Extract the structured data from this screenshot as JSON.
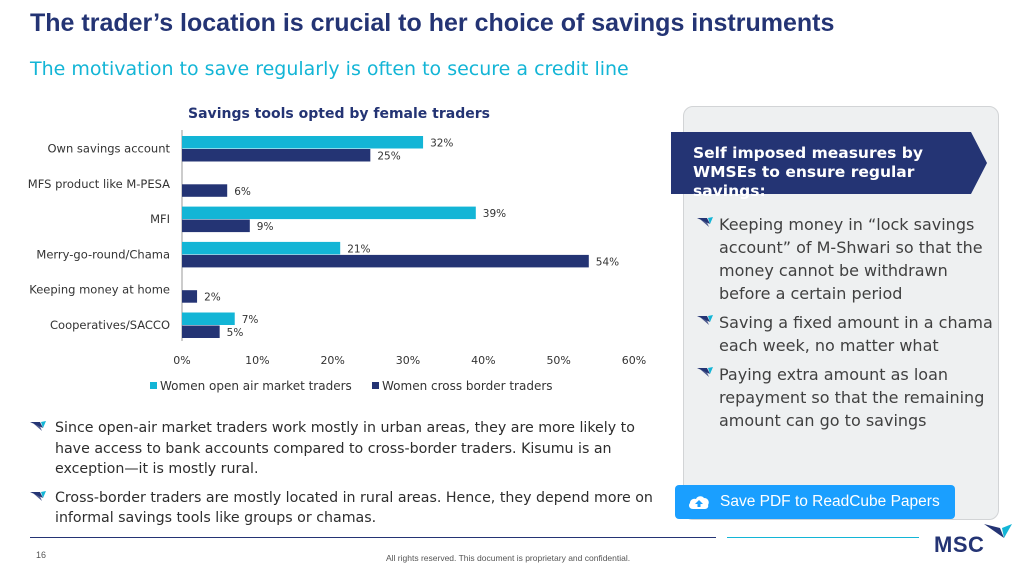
{
  "page": {
    "title": "The trader’s location is crucial to her choice of savings instruments",
    "subtitle": "The motivation to save regularly is often to secure a credit line",
    "page_number": "16",
    "copyright": "All rights reserved. This document is proprietary and confidential.",
    "logo": "MSC"
  },
  "colors": {
    "navy": "#243474",
    "cyan": "#13b5d6",
    "button_blue": "#1a9fff"
  },
  "chart_data": {
    "type": "bar",
    "orientation": "horizontal",
    "title": "Savings tools opted by female traders",
    "categories": [
      "Own savings account",
      "MFS product like M-PESA",
      "MFI",
      "Merry-go-round/Chama",
      "Keeping money at home",
      "Cooperatives/SACCO"
    ],
    "series": [
      {
        "name": "Women open air market traders",
        "color": "#13b5d6",
        "values": [
          32,
          null,
          39,
          21,
          null,
          7
        ],
        "labels": [
          "32%",
          "",
          "39%",
          "21%",
          "",
          "7%"
        ]
      },
      {
        "name": "Women cross border traders",
        "color": "#243474",
        "values": [
          25,
          6,
          9,
          54,
          2,
          5
        ],
        "labels": [
          "25%",
          "6%",
          "9%",
          "54%",
          "2%",
          "5%"
        ]
      }
    ],
    "xlim": [
      0,
      60
    ],
    "xticks": [
      "0%",
      "10%",
      "20%",
      "30%",
      "40%",
      "50%",
      "60%"
    ],
    "grid": false,
    "legend_position": "bottom"
  },
  "bullets": [
    "Since open-air market traders work mostly in urban areas, they are more likely to have access to bank accounts compared to cross-border traders. Kisumu is an exception—it is mostly rural.",
    "Cross-border traders are mostly located in rural areas. Hence, they depend more on informal savings tools like groups or chamas."
  ],
  "panel": {
    "heading": "Self imposed measures by WMSEs to ensure regular savings:",
    "items": [
      "Keeping money in “lock savings account” of M-Shwari so that the money cannot be withdrawn before a certain period",
      "Saving a fixed amount in a chama each week, no matter what",
      "Paying extra amount as loan repayment so that the remaining amount can go to savings"
    ]
  },
  "save_button": {
    "label": "Save PDF to ReadCube Papers",
    "icon": "cloud-upload-icon"
  }
}
